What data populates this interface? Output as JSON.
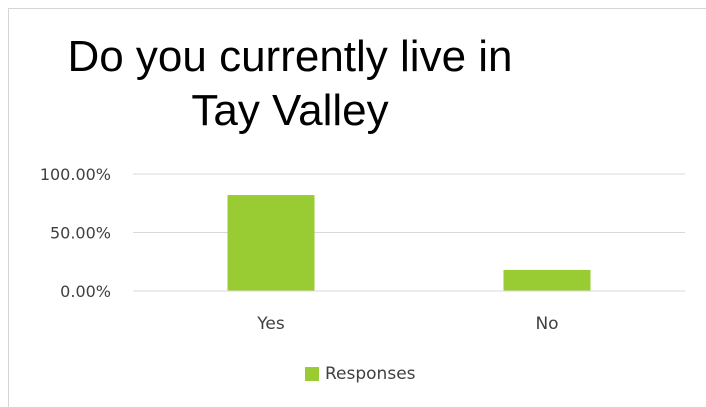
{
  "chart_data": {
    "type": "bar",
    "title_lines": [
      "Do you currently live in",
      "Tay Valley"
    ],
    "categories": [
      "Yes",
      "No"
    ],
    "series": [
      {
        "name": "Responses",
        "values": [
          0.82,
          0.18
        ],
        "color": "#99cc33"
      }
    ],
    "yticks": [
      {
        "value": 0,
        "label": "0.00%"
      },
      {
        "value": 0.5,
        "label": "50.00%"
      },
      {
        "value": 1.0,
        "label": "100.00%"
      }
    ],
    "ylim": [
      0,
      1.0
    ],
    "grid": true,
    "gridline_color": "#d9d9d9",
    "legend_position": "bottom",
    "xlabel": "",
    "ylabel": ""
  }
}
